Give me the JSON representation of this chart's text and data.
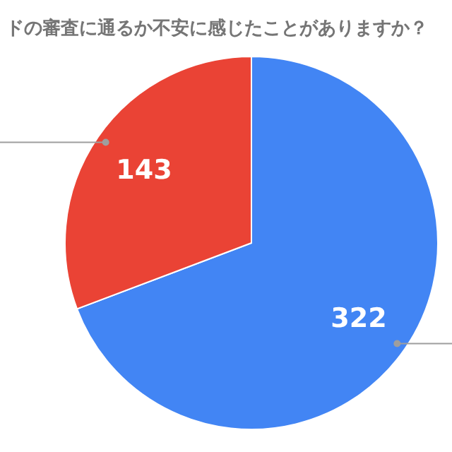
{
  "chart_data": {
    "type": "pie",
    "title": "ドの審査に通るか不安に感じたことがありますか？",
    "categories": [
      null,
      null
    ],
    "values": [
      322,
      143
    ],
    "colors": [
      "#4285f4",
      "#ea4335"
    ],
    "data_labels": true
  }
}
